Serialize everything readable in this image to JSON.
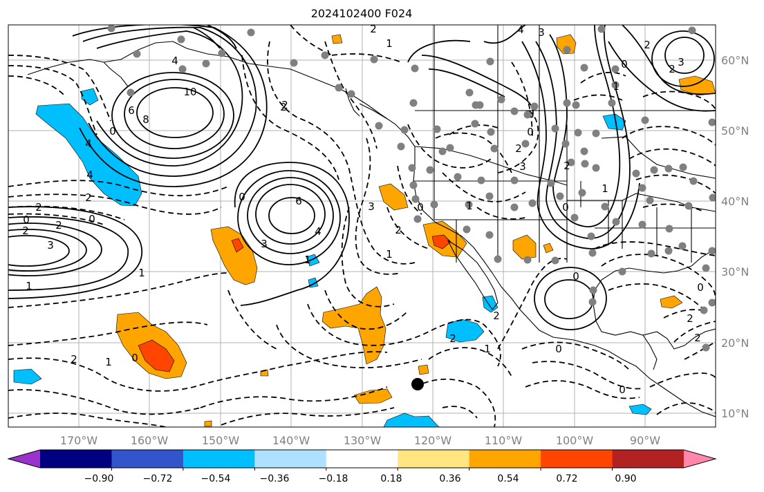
{
  "title": "2024102400 F024",
  "longitude_labels": [
    "170°W",
    "160°W",
    "150°W",
    "140°W",
    "130°W",
    "120°W",
    "110°W",
    "100°W",
    "90°W"
  ],
  "latitude_labels": [
    "60°N",
    "50°N",
    "40°N",
    "30°N",
    "20°N",
    "10°N"
  ],
  "colorbar": {
    "colors": [
      "#9933cc",
      "#000080",
      "#3355cc",
      "#00bfff",
      "#aee0ff",
      "#ffffff",
      "#ffe680",
      "#ffa500",
      "#ff4500",
      "#b22222",
      "#ff88aa"
    ],
    "ticks": [
      "−0.90",
      "−0.72",
      "−0.54",
      "−0.36",
      "−0.18",
      "0.18",
      "0.36",
      "0.54",
      "0.72",
      "0.90"
    ]
  },
  "contour_labels": [
    {
      "text": "10"
    },
    {
      "text": "8"
    },
    {
      "text": "6"
    },
    {
      "text": "4"
    },
    {
      "text": "4"
    },
    {
      "text": "4"
    },
    {
      "text": "3"
    },
    {
      "text": "3"
    },
    {
      "text": "2"
    },
    {
      "text": "2"
    },
    {
      "text": "2"
    },
    {
      "text": "2"
    },
    {
      "text": "2"
    },
    {
      "text": "1"
    },
    {
      "text": "1"
    },
    {
      "text": "0"
    },
    {
      "text": "0"
    },
    {
      "text": "0"
    },
    {
      "text": "0"
    },
    {
      "text": "0"
    },
    {
      "text": "0"
    },
    {
      "text": "0"
    },
    {
      "text": "1"
    },
    {
      "text": "2"
    },
    {
      "text": "3"
    },
    {
      "text": "6"
    },
    {
      "text": "4"
    },
    {
      "text": "3"
    },
    {
      "text": "1"
    },
    {
      "text": "2"
    },
    {
      "text": "2"
    },
    {
      "text": "1"
    },
    {
      "text": "2"
    },
    {
      "text": "1"
    },
    {
      "text": "0"
    },
    {
      "text": "2"
    },
    {
      "text": "1"
    },
    {
      "text": "4"
    },
    {
      "text": "3"
    },
    {
      "text": "2"
    },
    {
      "text": "2"
    },
    {
      "text": "3"
    },
    {
      "text": "2"
    },
    {
      "text": "0"
    },
    {
      "text": "1"
    },
    {
      "text": "2"
    },
    {
      "text": "0"
    },
    {
      "text": "0"
    },
    {
      "text": "0"
    },
    {
      "text": "2"
    },
    {
      "text": "2"
    },
    {
      "text": "1"
    },
    {
      "text": "1"
    },
    {
      "text": "2"
    },
    {
      "text": "0"
    }
  ]
}
